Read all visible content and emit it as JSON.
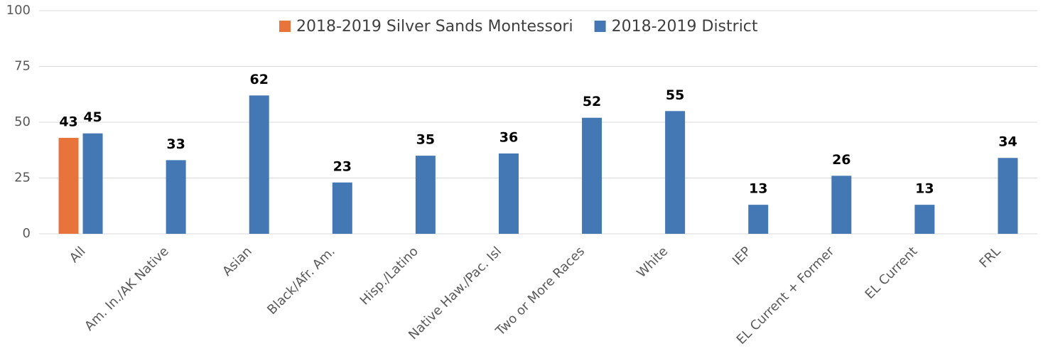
{
  "chart_data": {
    "type": "bar",
    "categories": [
      "All",
      "Am. In./AK Native",
      "Asian",
      "Black/Afr. Am.",
      "Hisp./Latino",
      "Native Haw./Pac. Isl",
      "Two or More Races",
      "White",
      "IEP",
      "EL Current + Former",
      "EL Current",
      "FRL"
    ],
    "series": [
      {
        "name": "2018-2019 Silver Sands Montessori",
        "color": "#e8743b",
        "values": [
          43,
          null,
          null,
          null,
          null,
          null,
          null,
          null,
          null,
          null,
          null,
          null
        ]
      },
      {
        "name": "2018-2019 District",
        "color": "#4378b4",
        "values": [
          45,
          33,
          62,
          23,
          35,
          36,
          52,
          55,
          13,
          26,
          13,
          34
        ]
      }
    ],
    "ylim": [
      0,
      100
    ],
    "yticks": [
      0,
      25,
      50,
      75,
      100
    ],
    "grid": true,
    "legend": "top"
  }
}
